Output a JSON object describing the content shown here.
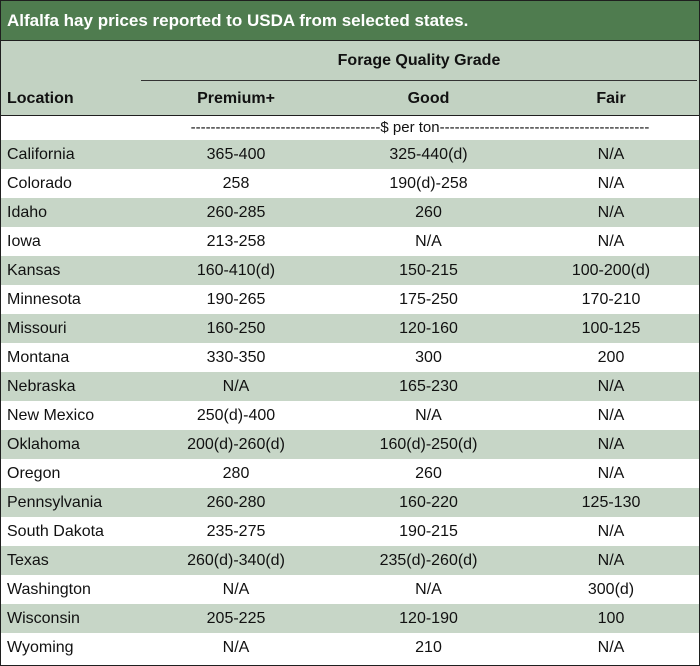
{
  "title": "Alfalfa hay prices reported to USDA from selected states.",
  "header": {
    "group_label": "Forage Quality Grade",
    "location_label": "Location",
    "columns": [
      "Premium+",
      "Good",
      "Fair"
    ]
  },
  "units": "--------------------------------------$ per ton------------------------------------------",
  "rows": [
    {
      "location": "California",
      "premium": "365-400",
      "good": "325-440(d)",
      "fair": "N/A"
    },
    {
      "location": "Colorado",
      "premium": "258",
      "good": "190(d)-258",
      "fair": "N/A"
    },
    {
      "location": "Idaho",
      "premium": "260-285",
      "good": "260",
      "fair": "N/A"
    },
    {
      "location": "Iowa",
      "premium": "213-258",
      "good": "N/A",
      "fair": "N/A"
    },
    {
      "location": "Kansas",
      "premium": "160-410(d)",
      "good": "150-215",
      "fair": "100-200(d)"
    },
    {
      "location": "Minnesota",
      "premium": "190-265",
      "good": "175-250",
      "fair": "170-210"
    },
    {
      "location": "Missouri",
      "premium": "160-250",
      "good": "120-160",
      "fair": "100-125"
    },
    {
      "location": "Montana",
      "premium": "330-350",
      "good": "300",
      "fair": "200"
    },
    {
      "location": "Nebraska",
      "premium": "N/A",
      "good": "165-230",
      "fair": "N/A"
    },
    {
      "location": "New Mexico",
      "premium": "250(d)-400",
      "good": "N/A",
      "fair": "N/A"
    },
    {
      "location": "Oklahoma",
      "premium": "200(d)-260(d)",
      "good": "160(d)-250(d)",
      "fair": "N/A"
    },
    {
      "location": "Oregon",
      "premium": "280",
      "good": "260",
      "fair": "N/A"
    },
    {
      "location": "Pennsylvania",
      "premium": "260-280",
      "good": "160-220",
      "fair": "125-130"
    },
    {
      "location": "South Dakota",
      "premium": "235-275",
      "good": "190-215",
      "fair": "N/A"
    },
    {
      "location": "Texas",
      "premium": "260(d)-340(d)",
      "good": "235(d)-260(d)",
      "fair": "N/A"
    },
    {
      "location": "Washington",
      "premium": "N/A",
      "good": "N/A",
      "fair": "300(d)"
    },
    {
      "location": "Wisconsin",
      "premium": "205-225",
      "good": "120-190",
      "fair": "100"
    },
    {
      "location": "Wyoming",
      "premium": "N/A",
      "good": "210",
      "fair": "N/A"
    }
  ]
}
